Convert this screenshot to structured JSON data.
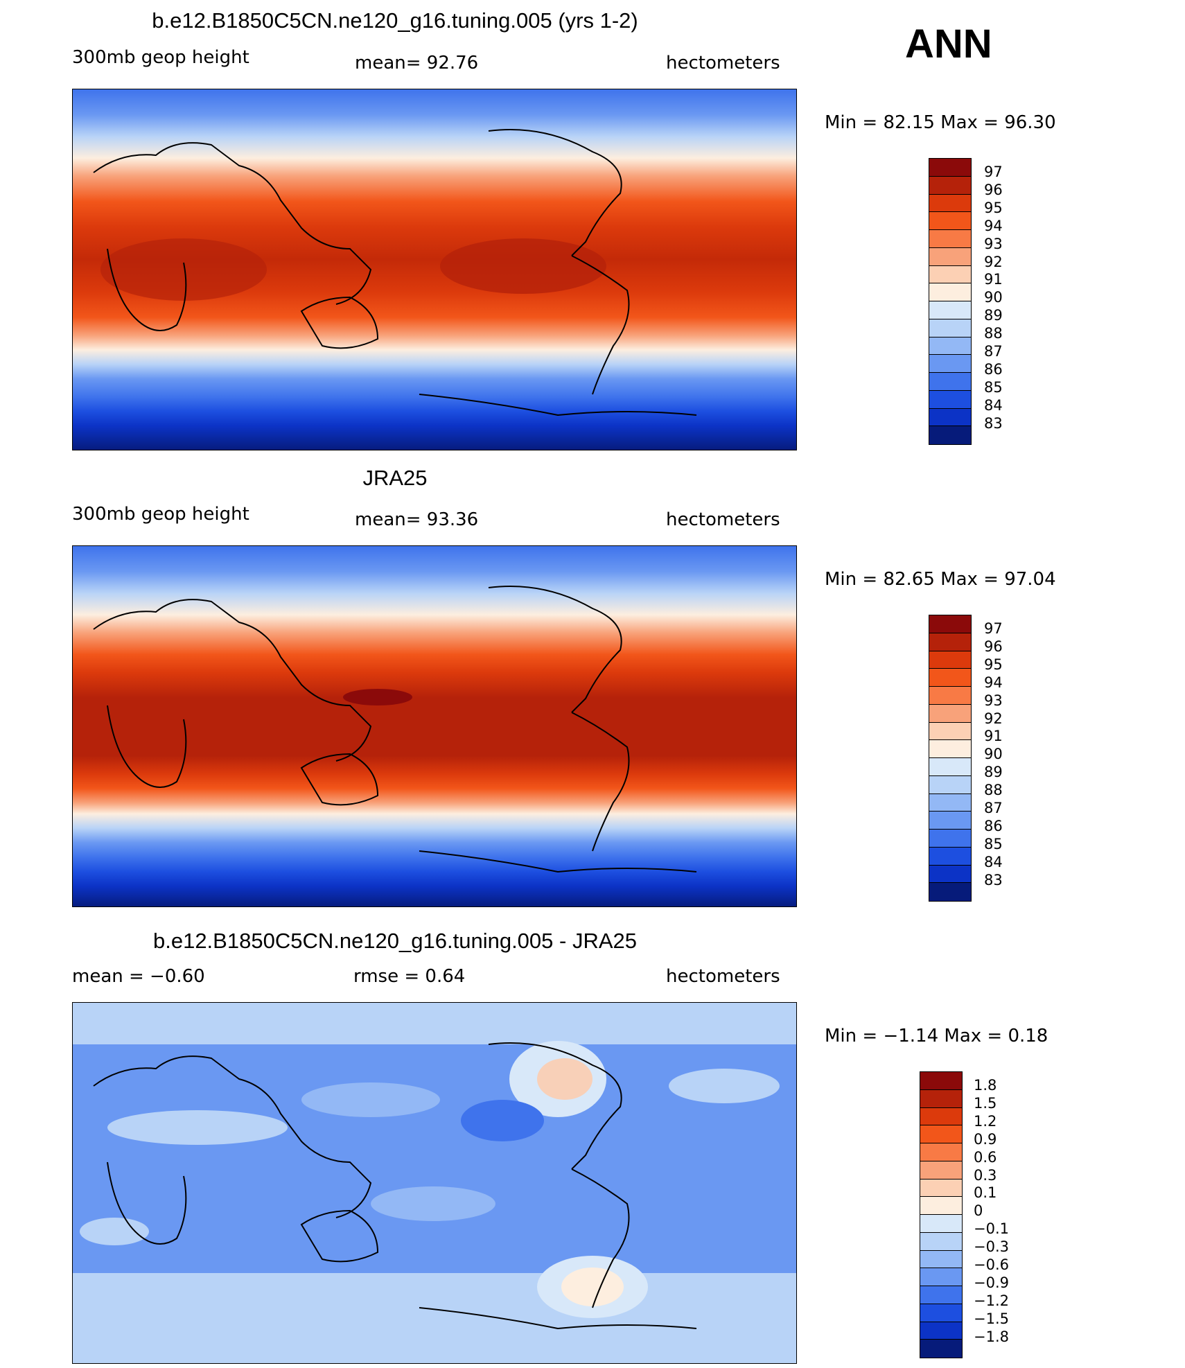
{
  "season": "ANN",
  "panels": [
    {
      "title": "b.e12.B1850C5CN.ne120_g16.tuning.005 (yrs 1-2)",
      "left": "300mb  geop  height",
      "center": "mean=   92.76",
      "units": "hectometers",
      "minmax": "Min  =    82.15  Max  =    96.30",
      "levels": [
        "97",
        "96",
        "95",
        "94",
        "93",
        "92",
        "91",
        "90",
        "89",
        "88",
        "87",
        "86",
        "85",
        "84",
        "83"
      ],
      "colors": [
        "#8b0a0a",
        "#b5220a",
        "#dc3a0c",
        "#f2561a",
        "#f87a45",
        "#f8a27a",
        "#fcd0b4",
        "#fdeedf",
        "#d8e8f9",
        "#b8d3f7",
        "#93b8f5",
        "#6a98f2",
        "#3f73ec",
        "#1d4fe0",
        "#0c33c6",
        "#061b7a"
      ]
    },
    {
      "title": "JRA25",
      "left": "300mb  geop  height",
      "center": "mean=   93.36",
      "units": "hectometers",
      "minmax": "Min  =    82.65  Max  =    97.04",
      "levels": [
        "97",
        "96",
        "95",
        "94",
        "93",
        "92",
        "91",
        "90",
        "89",
        "88",
        "87",
        "86",
        "85",
        "84",
        "83"
      ],
      "colors": [
        "#8b0a0a",
        "#b5220a",
        "#dc3a0c",
        "#f2561a",
        "#f87a45",
        "#f8a27a",
        "#fcd0b4",
        "#fdeedf",
        "#d8e8f9",
        "#b8d3f7",
        "#93b8f5",
        "#6a98f2",
        "#3f73ec",
        "#1d4fe0",
        "#0c33c6",
        "#061b7a"
      ]
    },
    {
      "title": "b.e12.B1850C5CN.ne120_g16.tuning.005 - JRA25",
      "left": "mean  =    −0.60",
      "center": "rmse  =     0.64",
      "units": "hectometers",
      "minmax": "Min  =   −1.14  Max  =      0.18",
      "levels": [
        "1.8",
        "1.5",
        "1.2",
        "0.9",
        "0.6",
        "0.3",
        "0.1",
        "0",
        "−0.1",
        "−0.3",
        "−0.6",
        "−0.9",
        "−1.2",
        "−1.5",
        "−1.8"
      ],
      "colors": [
        "#8b0a0a",
        "#b5220a",
        "#dc3a0c",
        "#f2561a",
        "#f87a45",
        "#f8a27a",
        "#fcd0b4",
        "#fdeedf",
        "#d8e8f9",
        "#b8d3f7",
        "#93b8f5",
        "#6a98f2",
        "#3f73ec",
        "#1d4fe0",
        "#0c33c6",
        "#061b7a"
      ]
    }
  ]
}
